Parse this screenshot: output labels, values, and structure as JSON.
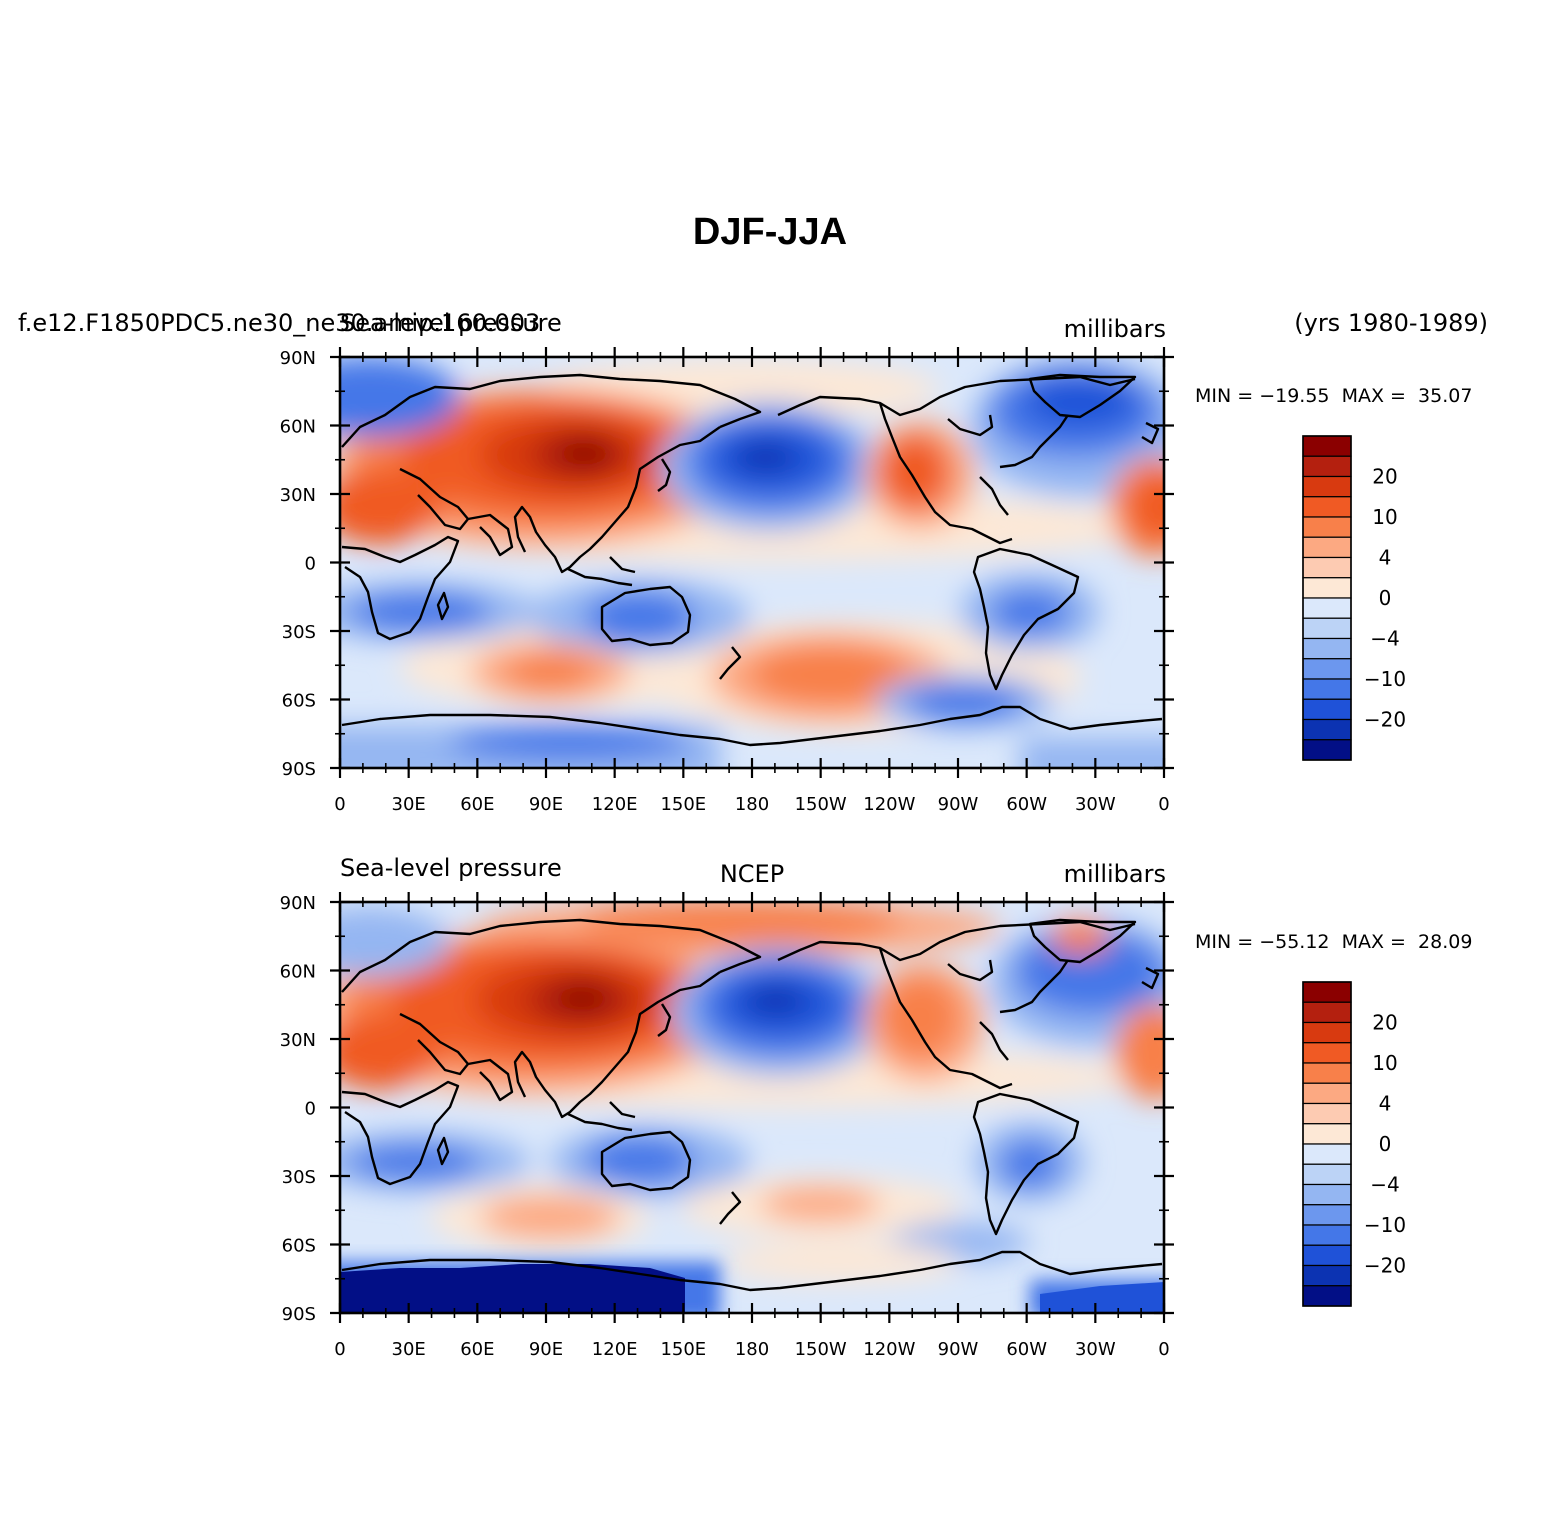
{
  "title": "DJF-JJA",
  "panels": [
    {
      "left_label": "f.e12.F1850PDC5.ne30_ne30.amip.160.003",
      "left_label_2": "Sea-level pressure",
      "center_label": "",
      "units": "millibars",
      "years": "(yrs 1980-1989)",
      "minmax": "MIN = -19.55  MAX =  35.07"
    },
    {
      "left_label": "Sea-level pressure",
      "center_label": "NCEP",
      "units": "millibars",
      "minmax": "MIN = -55.12  MAX =  28.09"
    }
  ],
  "lat_ticks": [
    "90N",
    "60N",
    "30N",
    "0",
    "30S",
    "60S",
    "90S"
  ],
  "lon_ticks": [
    "0",
    "30E",
    "60E",
    "90E",
    "120E",
    "150E",
    "180",
    "150W",
    "120W",
    "90W",
    "60W",
    "30W",
    "0"
  ],
  "colorbar": {
    "labels": [
      "20",
      "10",
      "4",
      "0",
      "-4",
      "-10",
      "-20"
    ],
    "colors": [
      "#8b0000",
      "#b4200f",
      "#d83a10",
      "#f05a24",
      "#f8804a",
      "#fca982",
      "#fdcbb2",
      "#fde8d6",
      "#dbe8fb",
      "#bcd3f6",
      "#94b6f2",
      "#6c97ee",
      "#4477e8",
      "#1f52d8",
      "#0c33b2",
      "#020f86"
    ]
  }
}
